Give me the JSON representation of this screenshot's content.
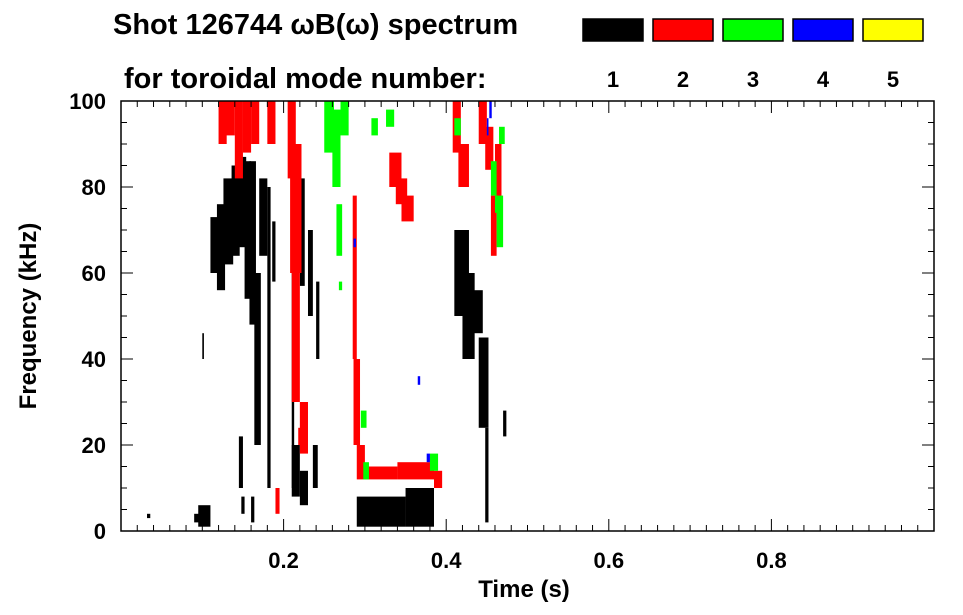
{
  "chart_data": {
    "type": "heatmap",
    "title": "Shot 126744 ωB(ω) spectrum",
    "subtitle": "for toroidal mode number:",
    "xlabel": "Time (s)",
    "ylabel": "Frequency (kHz)",
    "xlim": [
      0.0,
      1.0
    ],
    "ylim": [
      0,
      100
    ],
    "x_ticks": [
      "0.2",
      "0.4",
      "0.6",
      "0.8"
    ],
    "x_tick_values": [
      0.2,
      0.4,
      0.6,
      0.8
    ],
    "y_ticks": [
      "0",
      "20",
      "40",
      "60",
      "80",
      "100"
    ],
    "y_tick_values": [
      0,
      20,
      40,
      60,
      80,
      100
    ],
    "legend_position": "top-right",
    "series": [
      {
        "name": "1",
        "color": "#000000",
        "regions": [
          [
            0.11,
            0.12,
            60,
            73
          ],
          [
            0.118,
            0.128,
            56,
            76
          ],
          [
            0.126,
            0.138,
            62,
            82
          ],
          [
            0.136,
            0.146,
            64,
            85
          ],
          [
            0.144,
            0.154,
            66,
            87
          ],
          [
            0.152,
            0.16,
            54,
            86
          ],
          [
            0.158,
            0.166,
            48,
            86
          ],
          [
            0.164,
            0.172,
            20,
            60
          ],
          [
            0.17,
            0.18,
            64,
            82
          ],
          [
            0.18,
            0.184,
            10,
            80
          ],
          [
            0.186,
            0.19,
            58,
            72
          ],
          [
            0.145,
            0.15,
            10,
            22
          ],
          [
            0.148,
            0.152,
            4,
            8
          ],
          [
            0.16,
            0.164,
            2,
            8
          ],
          [
            0.22,
            0.226,
            57,
            82
          ],
          [
            0.23,
            0.236,
            50,
            70
          ],
          [
            0.21,
            0.213,
            10,
            90
          ],
          [
            0.236,
            0.242,
            10,
            20
          ],
          [
            0.24,
            0.244,
            40,
            58
          ],
          [
            0.21,
            0.22,
            8,
            20
          ],
          [
            0.22,
            0.23,
            6,
            14
          ],
          [
            0.29,
            0.35,
            1,
            8
          ],
          [
            0.35,
            0.385,
            1,
            10
          ],
          [
            0.3,
            0.34,
            2,
            6
          ],
          [
            0.41,
            0.428,
            50,
            70
          ],
          [
            0.42,
            0.435,
            40,
            60
          ],
          [
            0.43,
            0.445,
            46,
            56
          ],
          [
            0.44,
            0.452,
            24,
            45
          ],
          [
            0.448,
            0.452,
            2,
            24
          ],
          [
            0.47,
            0.474,
            22,
            28
          ],
          [
            0.095,
            0.11,
            1,
            6
          ],
          [
            0.09,
            0.096,
            2,
            4
          ],
          [
            0.032,
            0.036,
            3,
            4
          ],
          [
            0.1,
            0.102,
            40,
            46
          ]
        ]
      },
      {
        "name": "2",
        "color": "#ff0000",
        "regions": [
          [
            0.12,
            0.13,
            90,
            100
          ],
          [
            0.128,
            0.14,
            92,
            100
          ],
          [
            0.14,
            0.15,
            82,
            100
          ],
          [
            0.15,
            0.16,
            88,
            100
          ],
          [
            0.16,
            0.17,
            90,
            100
          ],
          [
            0.18,
            0.19,
            90,
            100
          ],
          [
            0.205,
            0.215,
            82,
            100
          ],
          [
            0.208,
            0.222,
            60,
            90
          ],
          [
            0.21,
            0.22,
            30,
            60
          ],
          [
            0.22,
            0.23,
            18,
            30
          ],
          [
            0.19,
            0.195,
            4,
            10
          ],
          [
            0.218,
            0.224,
            20,
            24
          ],
          [
            0.285,
            0.29,
            40,
            78
          ],
          [
            0.286,
            0.294,
            20,
            40
          ],
          [
            0.29,
            0.3,
            12,
            20
          ],
          [
            0.3,
            0.34,
            12,
            15
          ],
          [
            0.34,
            0.385,
            12,
            16
          ],
          [
            0.385,
            0.395,
            10,
            14
          ],
          [
            0.33,
            0.345,
            80,
            88
          ],
          [
            0.338,
            0.352,
            76,
            82
          ],
          [
            0.345,
            0.36,
            72,
            78
          ],
          [
            0.408,
            0.418,
            88,
            100
          ],
          [
            0.415,
            0.428,
            80,
            90
          ],
          [
            0.44,
            0.45,
            90,
            100
          ],
          [
            0.448,
            0.458,
            84,
            94
          ],
          [
            0.455,
            0.462,
            64,
            78
          ],
          [
            0.46,
            0.468,
            74,
            90
          ]
        ]
      },
      {
        "name": "3",
        "color": "#00ff00",
        "regions": [
          [
            0.25,
            0.262,
            88,
            100
          ],
          [
            0.26,
            0.27,
            80,
            98
          ],
          [
            0.265,
            0.272,
            64,
            76
          ],
          [
            0.27,
            0.28,
            92,
            100
          ],
          [
            0.326,
            0.336,
            94,
            98
          ],
          [
            0.308,
            0.316,
            92,
            96
          ],
          [
            0.295,
            0.302,
            24,
            28
          ],
          [
            0.298,
            0.305,
            12,
            16
          ],
          [
            0.41,
            0.418,
            92,
            96
          ],
          [
            0.38,
            0.39,
            14,
            18
          ],
          [
            0.455,
            0.462,
            78,
            86
          ],
          [
            0.462,
            0.47,
            66,
            78
          ],
          [
            0.465,
            0.472,
            90,
            94
          ],
          [
            0.46,
            0.464,
            74,
            78
          ],
          [
            0.268,
            0.272,
            56,
            58
          ]
        ]
      },
      {
        "name": "4",
        "color": "#0000ff",
        "regions": [
          [
            0.286,
            0.289,
            66,
            68
          ],
          [
            0.365,
            0.368,
            34,
            36
          ],
          [
            0.453,
            0.456,
            96,
            100
          ],
          [
            0.45,
            0.452,
            92,
            96
          ],
          [
            0.376,
            0.38,
            16,
            18
          ]
        ]
      },
      {
        "name": "5",
        "color": "#ffff00",
        "regions": []
      }
    ]
  }
}
